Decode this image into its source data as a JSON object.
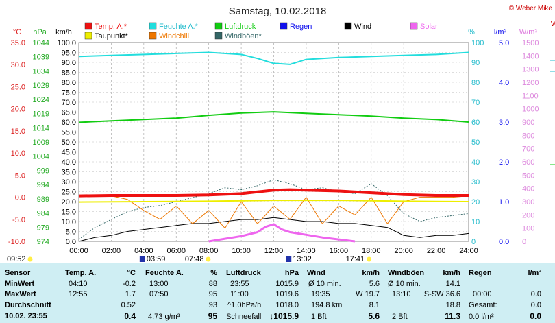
{
  "title": "Samstag, 10.02.2018",
  "copyright": "© Weber Mike",
  "legend": [
    {
      "label": "Temp. A.*",
      "color": "#ee1111"
    },
    {
      "label": "Feuchte A.*",
      "color": "#22dddd"
    },
    {
      "label": "Luftdruck",
      "color": "#11cc11"
    },
    {
      "label": "Regen",
      "color": "#1111ee"
    },
    {
      "label": "Wind",
      "color": "#000000"
    },
    {
      "label": "Solar",
      "color": "#ee66ee"
    },
    {
      "label": "Taupunkt*",
      "color": "#eeee00"
    },
    {
      "label": "Windchill",
      "color": "#ee7700"
    },
    {
      "label": "Windböen*",
      "color": "#336666"
    }
  ],
  "units": {
    "temp": "°C",
    "pressure": "hPa",
    "wind": "km/h",
    "humidity": "%",
    "rain": "l/m²",
    "solar": "W/m²"
  },
  "chart_data": {
    "type": "line",
    "x_labels": [
      "00:00",
      "02:00",
      "04:00",
      "06:00",
      "08:00",
      "10:00",
      "12:00",
      "14:00",
      "16:00",
      "18:00",
      "20:00",
      "22:00",
      "24:00"
    ],
    "x_range": [
      0,
      24
    ],
    "axes": {
      "temp": {
        "ticks": [
          "35.0",
          "30.0",
          "25.0",
          "20.0",
          "15.0",
          "10.0",
          "5.0",
          "0.0",
          "-5.0",
          "-10.0"
        ],
        "range": [
          -10,
          35
        ]
      },
      "pressure": {
        "ticks": [
          "1044",
          "1039",
          "1034",
          "1029",
          "1024",
          "1019",
          "1014",
          "1009",
          "1004",
          "999",
          "994",
          "989",
          "984",
          "979",
          "974"
        ],
        "range": [
          974,
          1044
        ]
      },
      "wind": {
        "ticks": [
          "100.0",
          "95.0",
          "90.0",
          "85.0",
          "80.0",
          "75.0",
          "70.0",
          "65.0",
          "60.0",
          "55.0",
          "50.0",
          "45.0",
          "40.0",
          "35.0",
          "30.0",
          "25.0",
          "20.0",
          "15.0",
          "10.0",
          "5.0",
          "0.0"
        ],
        "range": [
          0,
          100
        ]
      },
      "humidity": {
        "ticks": [
          "100",
          "90",
          "80",
          "70",
          "60",
          "50",
          "40",
          "30",
          "20",
          "10",
          "0"
        ],
        "range": [
          0,
          100
        ]
      },
      "rain": {
        "ticks": [
          "5.0",
          "4.0",
          "3.0",
          "2.0",
          "1.0",
          "0.0"
        ],
        "range": [
          0,
          5
        ]
      },
      "solar": {
        "ticks": [
          "1500",
          "1400",
          "1300",
          "1200",
          "1100",
          "1000",
          "900",
          "800",
          "700",
          "600",
          "500",
          "400",
          "300",
          "200",
          "100",
          "0"
        ],
        "range": [
          0,
          1500
        ]
      }
    },
    "series": [
      {
        "name": "Feuchte A.*",
        "axis": "humidity",
        "x": [
          0,
          2,
          4,
          6,
          8,
          10,
          11,
          12,
          13,
          14,
          16,
          18,
          20,
          22,
          24
        ],
        "values": [
          93,
          93.5,
          94,
          94.5,
          95,
          94,
          92,
          89.5,
          89,
          91.5,
          92.5,
          93,
          93.5,
          94,
          95
        ]
      },
      {
        "name": "Luftdruck",
        "axis": "pressure",
        "x": [
          0,
          2,
          4,
          6,
          8,
          10,
          12,
          14,
          16,
          18,
          20,
          22,
          24
        ],
        "values": [
          1015.9,
          1016.4,
          1016.9,
          1017.4,
          1018.4,
          1019.2,
          1019.6,
          1019.1,
          1018.6,
          1018.1,
          1017.4,
          1016.9,
          1016.0
        ]
      },
      {
        "name": "Temp. A.*",
        "axis": "temp",
        "x": [
          0,
          2,
          4,
          6,
          8,
          10,
          11,
          12,
          13,
          14,
          16,
          18,
          20,
          22,
          24
        ],
        "values": [
          0.3,
          0.4,
          0.4,
          0.4,
          0.5,
          0.8,
          1.2,
          1.6,
          1.7,
          1.6,
          1.4,
          1.0,
          0.6,
          0.4,
          0.4
        ]
      },
      {
        "name": "Taupunkt*",
        "axis": "temp",
        "x": [
          0,
          4,
          8,
          12,
          16,
          20,
          24
        ],
        "values": [
          -1.1,
          -1.0,
          -0.9,
          -0.7,
          -0.7,
          -0.9,
          -1.0
        ]
      },
      {
        "name": "Windchill",
        "axis": "temp",
        "x": [
          0,
          2,
          3,
          4,
          5,
          6,
          7,
          8,
          9,
          10,
          11,
          12,
          13,
          14,
          15,
          16,
          17,
          18,
          19,
          20,
          21,
          22,
          23,
          24
        ],
        "values": [
          0.3,
          0.3,
          -0.5,
          -3,
          -5,
          -2,
          -6,
          -3,
          -7,
          -1,
          -6,
          -2,
          -5,
          0,
          -6,
          -2,
          -4,
          0,
          -6,
          -1,
          0,
          0,
          0,
          0.3
        ]
      },
      {
        "name": "Wind",
        "axis": "wind",
        "x": [
          0,
          1,
          2,
          3,
          4,
          5,
          6,
          7,
          8,
          9,
          10,
          11,
          12,
          13,
          14,
          15,
          16,
          17,
          18,
          19,
          20,
          21,
          22,
          23,
          24
        ],
        "values": [
          0,
          2,
          3,
          5,
          6,
          7,
          8,
          9,
          9,
          10,
          11,
          11,
          12,
          11,
          10,
          10,
          9,
          9,
          8,
          7,
          3,
          2,
          3,
          3,
          4
        ]
      },
      {
        "name": "Windböen*",
        "axis": "wind",
        "x": [
          0,
          1,
          2,
          3,
          4,
          5,
          6,
          7,
          8,
          9,
          10,
          11,
          12,
          13,
          14,
          15,
          16,
          17,
          18,
          19,
          20,
          21,
          22,
          23,
          24
        ],
        "values": [
          1,
          7,
          11,
          15,
          17,
          18,
          20,
          22,
          24,
          27,
          26,
          28,
          31,
          29,
          26,
          27,
          25,
          24,
          29,
          23,
          14,
          10,
          12,
          13,
          14
        ]
      },
      {
        "name": "Solar",
        "axis": "solar",
        "x": [
          8,
          9,
          10,
          11,
          11.5,
          12,
          12.5,
          13,
          14,
          15,
          16,
          17
        ],
        "values": [
          0,
          20,
          40,
          70,
          110,
          130,
          90,
          70,
          50,
          30,
          15,
          0
        ]
      }
    ]
  },
  "markers": {
    "sunrise": "07:48",
    "sunset": "17:41",
    "moonrise": "03:59",
    "moonset": "13:02",
    "left_time": "09:52"
  },
  "table": {
    "headers": {
      "sensor": "Sensor",
      "temp": "Temp. A.",
      "temp_unit": "°C",
      "hum": "Feuchte A.",
      "hum_unit": "%",
      "press": "Luftdruck",
      "press_unit": "hPa",
      "wind": "Wind",
      "wind_unit": "km/h",
      "gust": "Windböen",
      "gust_unit": "km/h",
      "rain": "Regen",
      "rain_unit": "l/m²"
    },
    "rows": {
      "min": "MinWert",
      "max": "MaxWert",
      "avg": "Durchschnitt",
      "now": "10.02. 23:55"
    },
    "temp": {
      "min_t": "04:10",
      "min_v": "-0.2",
      "max_t": "12:55",
      "max_v": "1.7",
      "avg_v": "0.52",
      "now_v": "0.4"
    },
    "hum": {
      "min_t": "13:00",
      "min_v": "88",
      "max_t": "07:50",
      "max_v": "95",
      "avg_v": "93",
      "now_l": "4.73 g/m³",
      "now_v": "95"
    },
    "press": {
      "min_t": "23:55",
      "min_v": "1015.9",
      "max_t": "11:00",
      "max_v": "1019.6",
      "avg_l": "^1.0hPa/h",
      "avg_v": "1018.0",
      "now_l": "Schneefall",
      "now_v": "1015.9"
    },
    "wind": {
      "r1_l": "Ø 10 min.",
      "r1_v": "5.6",
      "r2_l": "19:35",
      "r2_d": "W 19.7",
      "r3_l": "194.8 km",
      "r3_v": "8.1",
      "r4_l": "1 Bft",
      "r4_v": "5.6"
    },
    "gust": {
      "r1_l": "Ø 10 min.",
      "r1_v": "14.1",
      "r2_l": "13:10",
      "r2_v": "S-SW 36.6",
      "r3_v": "18.8",
      "r4_l": "2 Bft",
      "r4_v": "11.3"
    },
    "rain": {
      "r2_l": "00:00",
      "r2_v": "0.0",
      "r3_l": "Gesamt:",
      "r3_v": "0.0",
      "r4_l": "0.0 l/m²",
      "r4_v": "0.0"
    }
  }
}
